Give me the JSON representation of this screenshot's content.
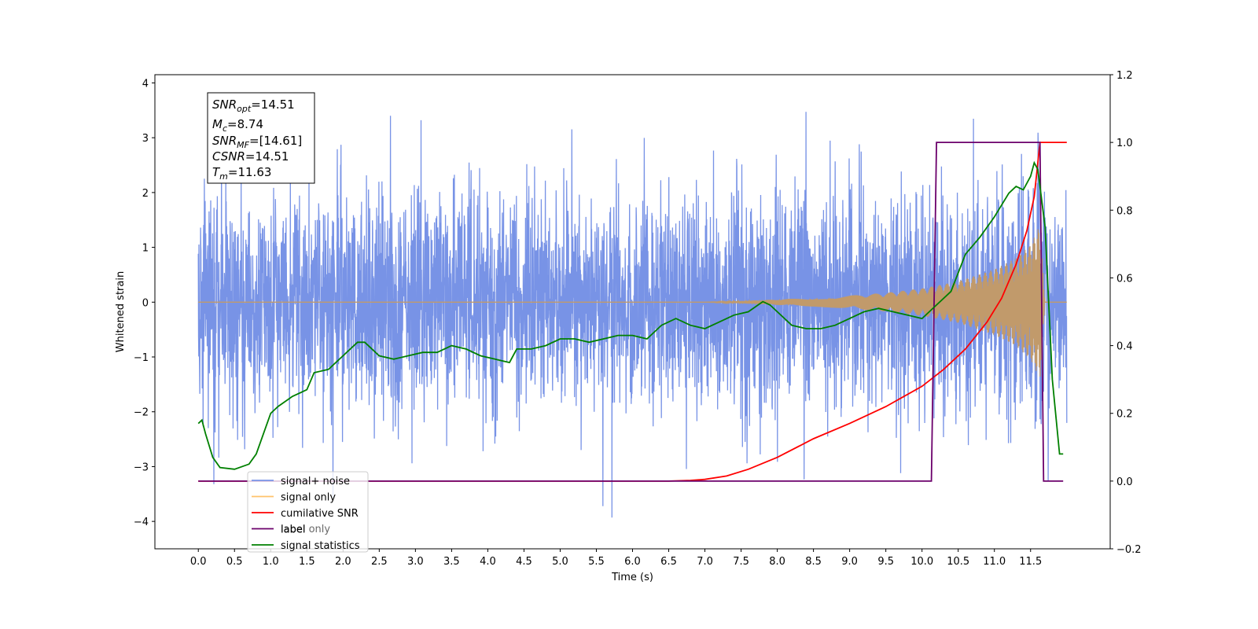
{
  "chart_data": {
    "type": "line",
    "xlabel": "Time (s)",
    "ylabel": "Whitened strain",
    "xlim": [
      -0.6,
      12.6
    ],
    "ylim": [
      -4.5,
      4.15
    ],
    "ylim_right": [
      -0.2,
      1.2
    ],
    "x_ticks": [
      "0.0",
      "0.5",
      "1.0",
      "1.5",
      "2.0",
      "2.5",
      "3.0",
      "3.5",
      "4.0",
      "4.5",
      "5.0",
      "5.5",
      "6.0",
      "6.5",
      "7.0",
      "7.5",
      "8.0",
      "8.5",
      "9.0",
      "9.5",
      "10.0",
      "10.5",
      "11.0",
      "11.5"
    ],
    "y_ticks_left": [
      "4",
      "3",
      "2",
      "1",
      "0",
      "−1",
      "−2",
      "−3",
      "−4"
    ],
    "y_ticks_right": [
      "1.2",
      "1.0",
      "0.8",
      "0.6",
      "0.4",
      "0.2",
      "0.0",
      "−0.2"
    ],
    "info_box": {
      "snr_opt": {
        "sym": "SNR",
        "sub": "opt",
        "value": "=14.51"
      },
      "mc": {
        "sym": "M",
        "sub": "c",
        "value": "=8.74"
      },
      "snr_mf": {
        "sym": "SNR",
        "sub": "MF",
        "value": "=[14.61]"
      },
      "csnr": {
        "sym": "CSNR",
        "sub": "",
        "value": "=14.51"
      },
      "tm": {
        "sym": "T",
        "sub": "m",
        "value": "=11.63"
      }
    },
    "legend": {
      "placement": "lower-left",
      "entries": [
        {
          "label": "signal+ noise",
          "color": "#7893e6"
        },
        {
          "label": "signal only",
          "color": "#ffc36b"
        },
        {
          "label": "cumilative SNR",
          "color": "#ff0000"
        },
        {
          "label": "label",
          "color": "#6b006b"
        },
        {
          "label": "signal statistics",
          "color": "#008000"
        }
      ],
      "ghost_label": "label only"
    },
    "series": [
      {
        "name": "signal+ noise",
        "axis": "left",
        "color": "#7893e6",
        "x_range": [
          0.0,
          12.0
        ],
        "noise_sigma": 1.0,
        "approx_range": [
          -4.1,
          3.4
        ]
      },
      {
        "name": "signal only",
        "axis": "left",
        "color": "#c19a6b",
        "envelope_x": [
          7.0,
          7.5,
          8.0,
          8.5,
          9.0,
          9.5,
          10.0,
          10.5,
          11.0,
          11.3,
          11.5,
          11.63,
          11.7,
          12.0
        ],
        "envelope_y": [
          0.0,
          0.02,
          0.05,
          0.08,
          0.12,
          0.17,
          0.25,
          0.38,
          0.6,
          0.8,
          1.05,
          1.4,
          0.0,
          0.0
        ]
      },
      {
        "name": "cumilative SNR",
        "axis": "right",
        "color": "#ff0000",
        "x": [
          0.0,
          6.5,
          6.8,
          7.0,
          7.3,
          7.6,
          8.0,
          8.5,
          9.0,
          9.5,
          10.0,
          10.3,
          10.6,
          10.9,
          11.1,
          11.3,
          11.45,
          11.55,
          11.63,
          12.0
        ],
        "y": [
          0.0,
          0.0,
          0.002,
          0.005,
          0.015,
          0.035,
          0.07,
          0.125,
          0.17,
          0.22,
          0.28,
          0.33,
          0.39,
          0.47,
          0.54,
          0.64,
          0.74,
          0.84,
          1.0,
          1.0
        ]
      },
      {
        "name": "label",
        "axis": "right",
        "color": "#6b006b",
        "x": [
          0.0,
          10.13,
          10.2,
          11.63,
          11.68,
          11.95
        ],
        "y": [
          0.0,
          0.0,
          1.0,
          1.0,
          0.0,
          0.0
        ]
      },
      {
        "name": "signal statistics",
        "axis": "right",
        "color": "#008000",
        "x": [
          0.0,
          0.05,
          0.1,
          0.2,
          0.3,
          0.5,
          0.7,
          0.8,
          0.9,
          1.0,
          1.1,
          1.3,
          1.5,
          1.6,
          1.8,
          2.0,
          2.2,
          2.3,
          2.5,
          2.7,
          2.9,
          3.1,
          3.3,
          3.5,
          3.7,
          3.9,
          4.1,
          4.3,
          4.4,
          4.6,
          4.8,
          5.0,
          5.2,
          5.4,
          5.6,
          5.8,
          6.0,
          6.2,
          6.4,
          6.6,
          6.8,
          7.0,
          7.2,
          7.4,
          7.6,
          7.8,
          7.9,
          8.0,
          8.2,
          8.4,
          8.6,
          8.8,
          9.0,
          9.2,
          9.4,
          9.6,
          9.8,
          10.0,
          10.2,
          10.4,
          10.6,
          10.8,
          11.0,
          11.2,
          11.3,
          11.4,
          11.5,
          11.55,
          11.6,
          11.7,
          11.8,
          11.9,
          11.95
        ],
        "y": [
          0.17,
          0.18,
          0.14,
          0.07,
          0.04,
          0.035,
          0.05,
          0.08,
          0.14,
          0.2,
          0.22,
          0.25,
          0.27,
          0.32,
          0.33,
          0.37,
          0.41,
          0.41,
          0.37,
          0.36,
          0.37,
          0.38,
          0.38,
          0.4,
          0.39,
          0.37,
          0.36,
          0.35,
          0.39,
          0.39,
          0.4,
          0.42,
          0.42,
          0.41,
          0.42,
          0.43,
          0.43,
          0.42,
          0.46,
          0.48,
          0.46,
          0.45,
          0.47,
          0.49,
          0.5,
          0.53,
          0.52,
          0.5,
          0.46,
          0.45,
          0.45,
          0.46,
          0.48,
          0.5,
          0.51,
          0.5,
          0.49,
          0.48,
          0.52,
          0.56,
          0.67,
          0.72,
          0.78,
          0.85,
          0.87,
          0.86,
          0.9,
          0.94,
          0.92,
          0.75,
          0.3,
          0.08,
          0.08
        ]
      }
    ]
  }
}
